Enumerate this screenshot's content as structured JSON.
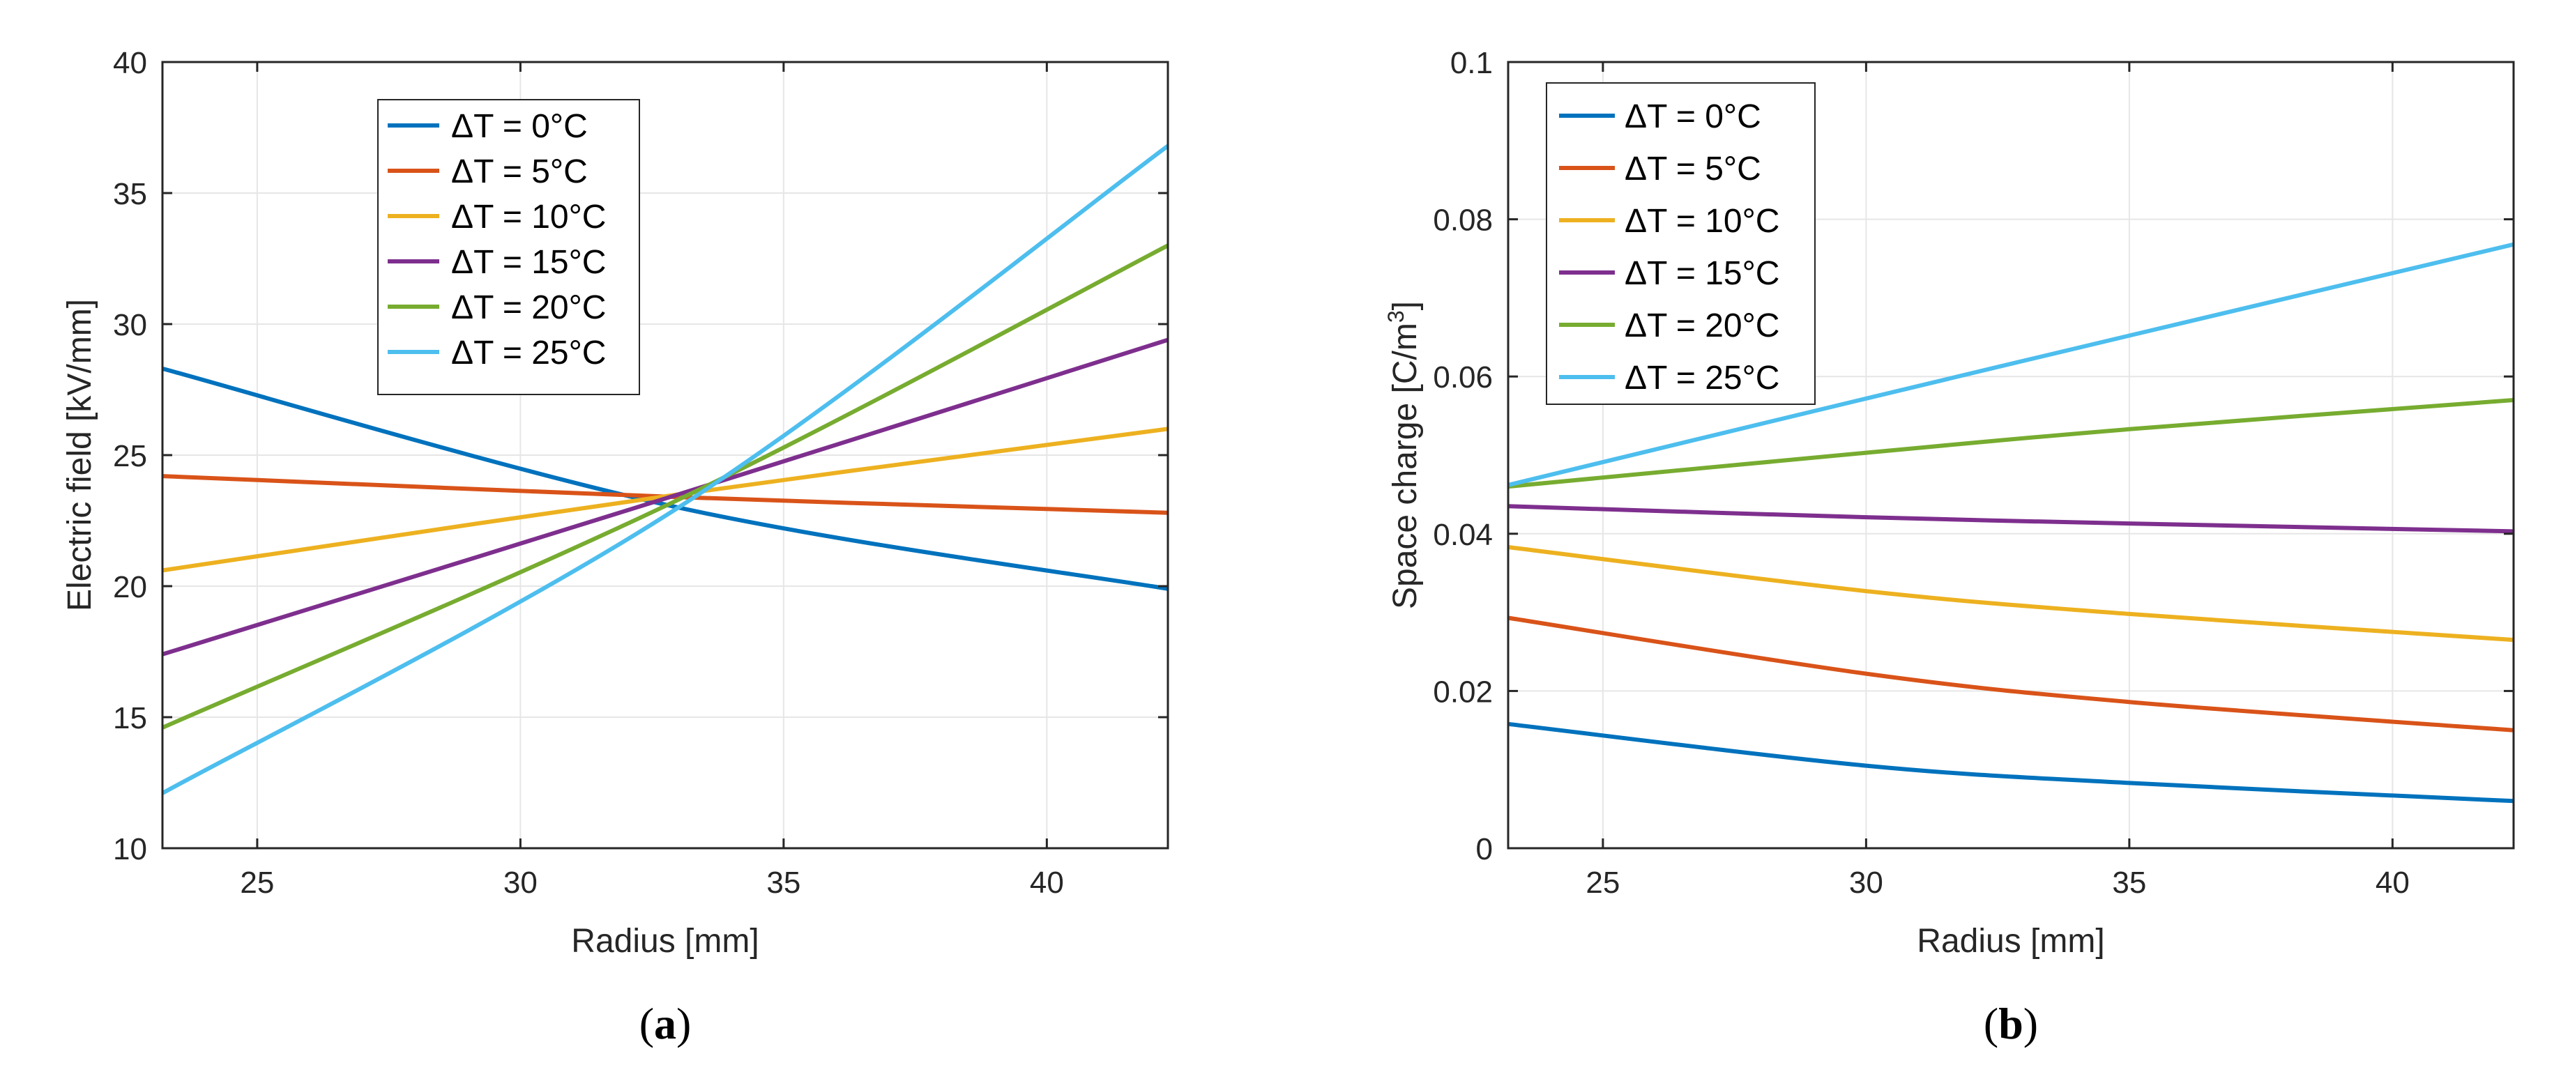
{
  "chart_data": [
    {
      "type": "line",
      "panel": "a",
      "panel_label": {
        "open": "(",
        "letter": "a",
        "close": ")"
      },
      "xlabel": "Radius [mm]",
      "ylabel": "Electric field [kV/mm]",
      "xlim": [
        23.2,
        42.3
      ],
      "ylim": [
        10,
        40
      ],
      "xticks": [
        25,
        30,
        35,
        40
      ],
      "yticks": [
        10,
        15,
        20,
        25,
        30,
        35,
        40
      ],
      "grid": true,
      "legend_position": "upper-center",
      "series": [
        {
          "name": "ΔT = 0°C",
          "color": "#0072BD",
          "x": [
            23.2,
            33.0,
            42.3
          ],
          "y": [
            28.3,
            23.0,
            19.9
          ]
        },
        {
          "name": "ΔT = 5°C",
          "color": "#D95319",
          "x": [
            23.2,
            33.0,
            42.3
          ],
          "y": [
            24.2,
            23.4,
            22.8
          ]
        },
        {
          "name": "ΔT = 10°C",
          "color": "#EDB120",
          "x": [
            23.2,
            33.0,
            42.3
          ],
          "y": [
            20.6,
            23.5,
            26.0
          ]
        },
        {
          "name": "ΔT = 15°C",
          "color": "#7E2F8E",
          "x": [
            23.2,
            33.0,
            42.3
          ],
          "y": [
            17.4,
            23.5,
            29.4
          ]
        },
        {
          "name": "ΔT = 20°C",
          "color": "#77AC30",
          "x": [
            23.2,
            33.0,
            42.3
          ],
          "y": [
            14.6,
            23.3,
            33.0
          ]
        },
        {
          "name": "ΔT = 25°C",
          "color": "#4DBEEE",
          "x": [
            23.2,
            33.0,
            42.3
          ],
          "y": [
            12.1,
            23.0,
            36.8
          ]
        }
      ]
    },
    {
      "type": "line",
      "panel": "b",
      "panel_label": {
        "open": "(",
        "letter": "b",
        "close": ")"
      },
      "xlabel": "Radius [mm]",
      "ylabel": "Space charge [C/m",
      "ylabel_superscript": "3",
      "ylabel_suffix": "]",
      "xlim": [
        23.2,
        42.3
      ],
      "ylim": [
        0,
        0.1
      ],
      "xticks": [
        25,
        30,
        35,
        40
      ],
      "yticks": [
        0,
        0.02,
        0.04,
        0.06,
        0.08,
        0.1
      ],
      "ytick_labels": [
        "0",
        "0.02",
        "0.04",
        "0.06",
        "0.08",
        "0.1"
      ],
      "grid": true,
      "legend_position": "upper-left",
      "series": [
        {
          "name": "ΔT = 0°C",
          "color": "#0072BD",
          "x": [
            23.2,
            30.0,
            35.0,
            42.3
          ],
          "y": [
            0.0158,
            0.0105,
            0.0083,
            0.006
          ]
        },
        {
          "name": "ΔT = 5°C",
          "color": "#D95319",
          "x": [
            23.2,
            30.0,
            35.0,
            42.3
          ],
          "y": [
            0.0293,
            0.0222,
            0.0186,
            0.015
          ]
        },
        {
          "name": "ΔT = 10°C",
          "color": "#EDB120",
          "x": [
            23.2,
            30.0,
            35.0,
            42.3
          ],
          "y": [
            0.0383,
            0.0327,
            0.0298,
            0.0265
          ]
        },
        {
          "name": "ΔT = 15°C",
          "color": "#7E2F8E",
          "x": [
            23.2,
            30.0,
            35.0,
            42.3
          ],
          "y": [
            0.0435,
            0.0421,
            0.0413,
            0.0403
          ]
        },
        {
          "name": "ΔT = 20°C",
          "color": "#77AC30",
          "x": [
            23.2,
            30.0,
            35.0,
            42.3
          ],
          "y": [
            0.046,
            0.0503,
            0.0533,
            0.057
          ]
        },
        {
          "name": "ΔT = 25°C",
          "color": "#4DBEEE",
          "x": [
            23.2,
            30.0,
            35.0,
            42.3
          ],
          "y": [
            0.0462,
            0.0572,
            0.0652,
            0.0768
          ]
        }
      ]
    }
  ]
}
